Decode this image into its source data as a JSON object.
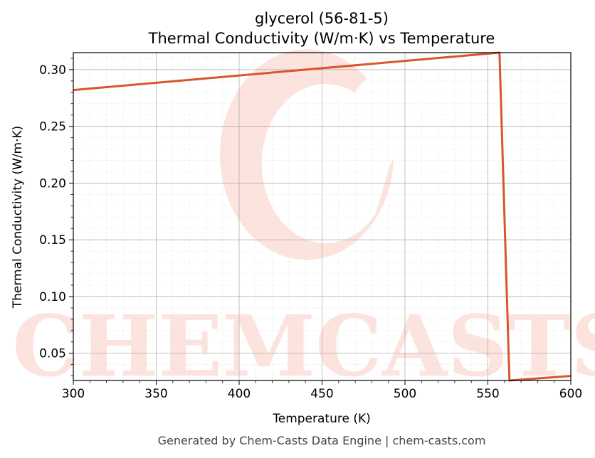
{
  "footer": "Generated by Chem-Casts Data Engine | chem-casts.com",
  "watermark": {
    "text": "CHEMCASTS",
    "color": "#fde3dd"
  },
  "chart_data": {
    "type": "line",
    "title": "glycerol (56-81-5)",
    "subtitle": "Thermal Conductivity (W/m·K) vs Temperature",
    "xlabel": "Temperature (K)",
    "ylabel": "Thermal Conductivity (W/m·K)",
    "xlim": [
      300,
      600
    ],
    "ylim": [
      0.026,
      0.315
    ],
    "xticks": [
      300,
      350,
      400,
      450,
      500,
      550,
      600
    ],
    "xtick_labels": [
      "300",
      "350",
      "400",
      "450",
      "500",
      "550",
      "600"
    ],
    "yticks": [
      0.05,
      0.1,
      0.15,
      0.2,
      0.25,
      0.3
    ],
    "ytick_labels": [
      "0.05",
      "0.10",
      "0.15",
      "0.20",
      "0.25",
      "0.30"
    ],
    "grid": true,
    "series": [
      {
        "color": "#d9552b",
        "x": [
          300,
          557,
          563,
          600
        ],
        "y": [
          0.282,
          0.315,
          0.026,
          0.03
        ]
      }
    ]
  }
}
